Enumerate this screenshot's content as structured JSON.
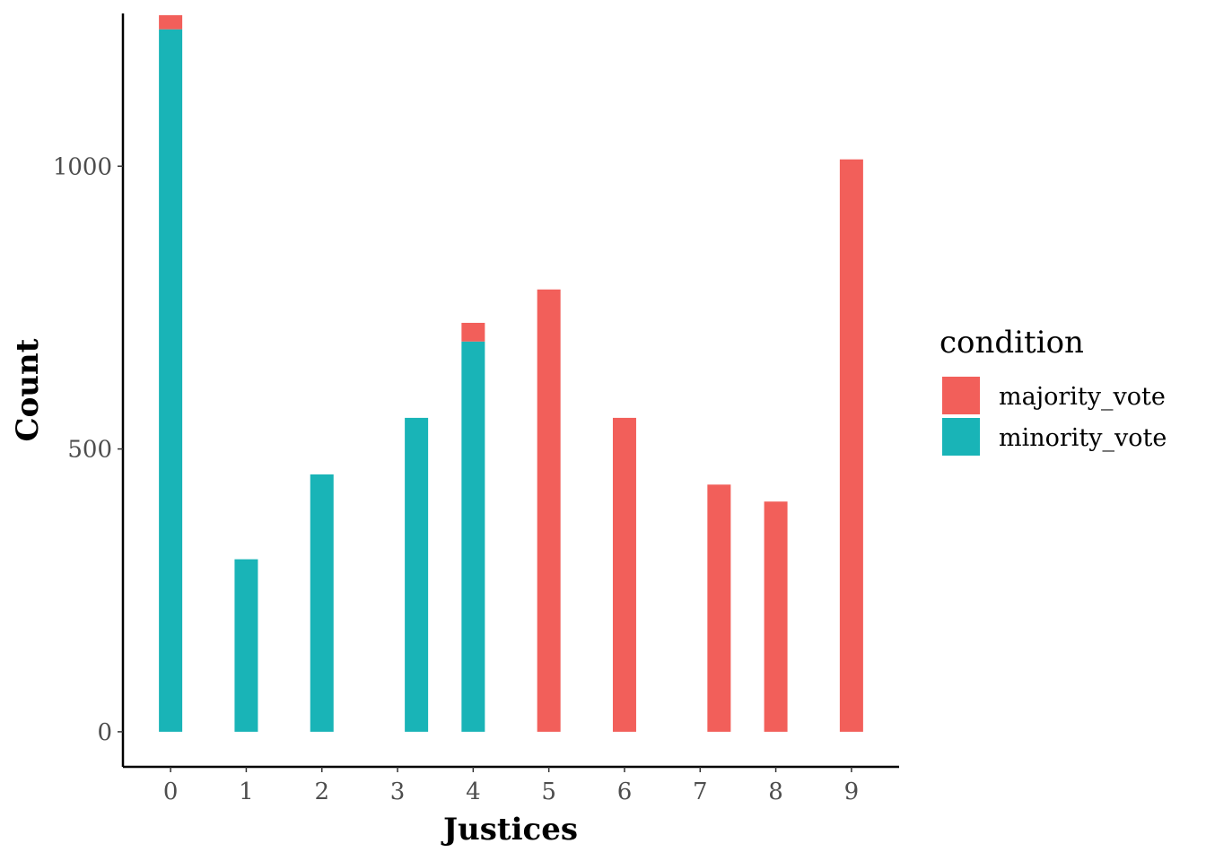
{
  "chart_data": {
    "type": "bar",
    "stacked": true,
    "xlabel": "Justices",
    "ylabel": "Count",
    "categories": [
      "0",
      "1",
      "2",
      "3",
      "4",
      "5",
      "6",
      "7",
      "8",
      "9"
    ],
    "x_values": [
      0.0,
      1.0,
      2.0,
      3.25,
      4.0,
      5.0,
      6.0,
      7.25,
      8.0,
      9.0
    ],
    "x_ticks": [
      0,
      1,
      2,
      3,
      4,
      5,
      6,
      7,
      8,
      9
    ],
    "y_ticks": [
      0,
      500,
      1000
    ],
    "ylim": [
      -62,
      1270
    ],
    "xlim": [
      -0.63,
      9.63
    ],
    "series": [
      {
        "name": "minority_vote",
        "color": "#19b4b7",
        "values": [
          1242,
          305,
          455,
          555,
          690,
          0,
          0,
          0,
          0,
          0
        ]
      },
      {
        "name": "majority_vote",
        "color": "#f25f5a",
        "values": [
          25,
          0,
          0,
          0,
          33,
          782,
          555,
          437,
          407,
          1012
        ]
      }
    ],
    "legend": {
      "title": "condition",
      "position": "right"
    },
    "grid": false
  }
}
